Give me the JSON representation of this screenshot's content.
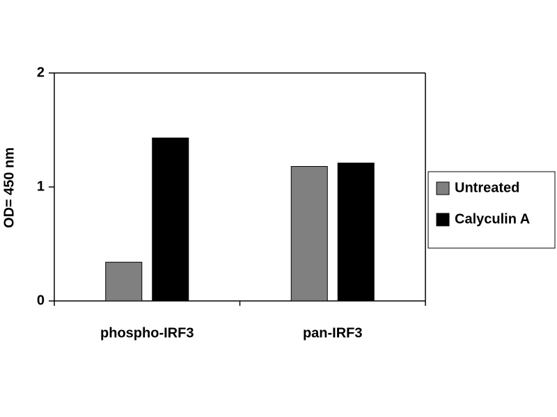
{
  "chart_data": {
    "type": "bar",
    "y_label": "OD= 450 nm",
    "categories": [
      "phospho-IRF3",
      "pan-IRF3"
    ],
    "series": [
      {
        "name": "Untreated",
        "color": "#808080",
        "values": [
          0.34,
          1.18
        ]
      },
      {
        "name": "Calyculin A",
        "color": "#000000",
        "values": [
          1.43,
          1.21
        ]
      }
    ],
    "ylim": [
      0,
      2
    ],
    "yticks": [
      0,
      1,
      2
    ],
    "legend": "right"
  }
}
